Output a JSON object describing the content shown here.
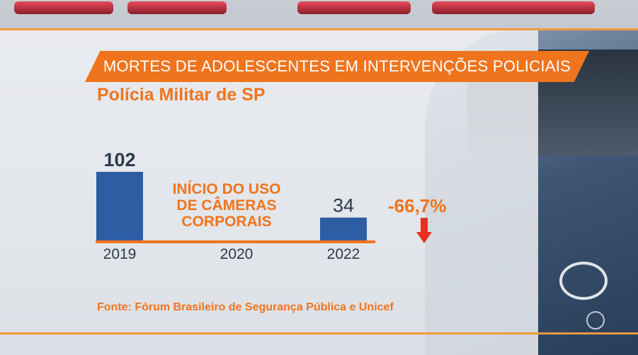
{
  "title": "MORTES DE ADOLESCENTES EM INTERVENÇÕES POLICIAIS",
  "subtitle": "Polícia Militar de SP",
  "annotation": [
    "INÍCIO DO USO",
    "DE CÂMERAS",
    "CORPORAIS"
  ],
  "change": "-66,7%",
  "source": "Fonte: Fórum Brasileiro de Segurança Pública e Unicef",
  "colors": {
    "accent": "#f0741d",
    "bar": "#2d5da3",
    "arrow": "#e8321f",
    "text_dark": "#2b3a4a"
  },
  "icons": [
    "down-arrow-icon",
    "globo-logo-icon"
  ],
  "chart_data": {
    "type": "bar",
    "categories": [
      "2019",
      "2020",
      "2022"
    ],
    "values": [
      102,
      null,
      34
    ],
    "data_labels": [
      "102",
      "",
      "34"
    ],
    "title": "MORTES DE ADOLESCENTES EM INTERVENÇÕES POLICIAIS",
    "subtitle": "Polícia Militar de SP",
    "xlabel": "",
    "ylabel": "",
    "ylim": [
      0,
      102
    ],
    "grid": false,
    "legend": "none"
  }
}
